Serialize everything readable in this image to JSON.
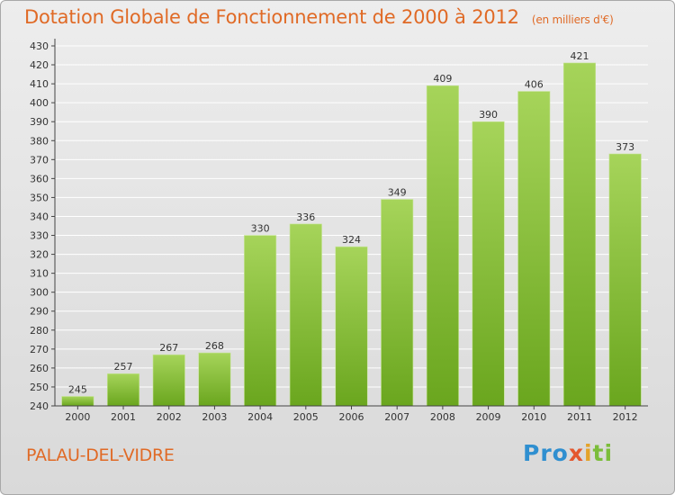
{
  "header": {
    "title": "Dotation Globale de Fonctionnement de 2000 à 2012",
    "subtitle": "(en milliers d'€)"
  },
  "footer": {
    "town": "PALAU-DEL-VIDRE",
    "logo": "Proxiti",
    "logo_parts": [
      "Pro",
      "x",
      "i",
      "ti"
    ]
  },
  "colors": {
    "accent": "#e06a26",
    "bar_light": "#a6d45a",
    "bar_dark": "#6aa61e",
    "grid": "#ffffff"
  },
  "chart_data": {
    "type": "bar",
    "categories": [
      "2000",
      "2001",
      "2002",
      "2003",
      "2004",
      "2005",
      "2006",
      "2007",
      "2008",
      "2009",
      "2010",
      "2011",
      "2012"
    ],
    "values": [
      245,
      257,
      267,
      268,
      330,
      336,
      324,
      349,
      409,
      390,
      406,
      421,
      373
    ],
    "title": "Dotation Globale de Fonctionnement de 2000 à 2012",
    "subtitle": "(en milliers d'€)",
    "xlabel": "",
    "ylabel": "",
    "ylim": [
      240,
      430
    ],
    "ytick_step": 10,
    "grid": true,
    "data_labels": true
  }
}
